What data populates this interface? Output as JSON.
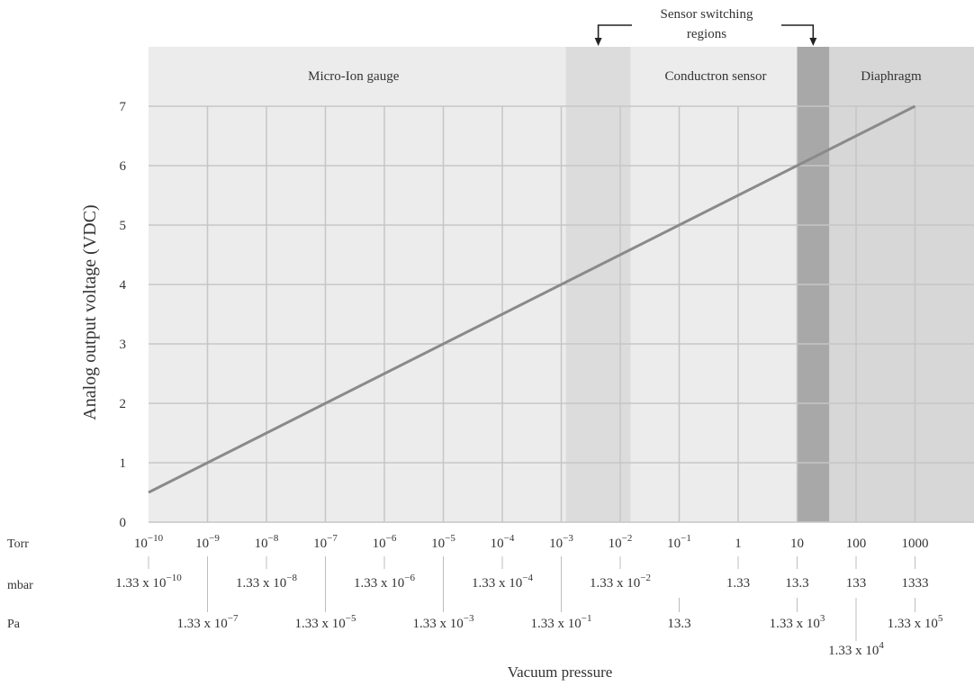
{
  "chart_data": {
    "type": "line",
    "title": "",
    "xlabel": "Vacuum pressure",
    "ylabel": "Analog output voltage (VDC)",
    "x_scale": "log",
    "x_unit": "Torr",
    "ylim": [
      0,
      7
    ],
    "yticks": [
      "0",
      "1",
      "2",
      "3",
      "4",
      "5",
      "6",
      "7"
    ],
    "grid": true,
    "series": [
      {
        "x": [
          1e-10,
          1000
        ],
        "y": [
          0.5,
          7
        ],
        "color": "#8a8a8a"
      }
    ],
    "regions": [
      {
        "label": "Micro-Ion gauge",
        "from": 1e-11,
        "to": 0.0012
      },
      {
        "label": "Conductron sensor",
        "from": 0.0012,
        "to": 10
      },
      {
        "label": "Diaphragm",
        "from": 10,
        "to": 10000
      }
    ],
    "switching_regions": [
      {
        "from": 0.0012,
        "to": 0.015
      },
      {
        "from": 10,
        "to": 35
      }
    ],
    "switching_annotation": [
      "Sensor switching",
      "regions"
    ],
    "scale_rows": [
      {
        "label": "Torr",
        "ticks": [
          {
            "value": 1e-10,
            "base": "10",
            "exp": "−10"
          },
          {
            "value": 1e-09,
            "base": "10",
            "exp": "−9"
          },
          {
            "value": 1e-08,
            "base": "10",
            "exp": "−8"
          },
          {
            "value": 1e-07,
            "base": "10",
            "exp": "−7"
          },
          {
            "value": 1e-06,
            "base": "10",
            "exp": "−6"
          },
          {
            "value": 1e-05,
            "base": "10",
            "exp": "−5"
          },
          {
            "value": 0.0001,
            "base": "10",
            "exp": "−4"
          },
          {
            "value": 0.001,
            "base": "10",
            "exp": "−3"
          },
          {
            "value": 0.01,
            "base": "10",
            "exp": "−2"
          },
          {
            "value": 0.1,
            "base": "10",
            "exp": "−1"
          },
          {
            "value": 1,
            "base": "1",
            "exp": ""
          },
          {
            "value": 10,
            "base": "10",
            "exp": ""
          },
          {
            "value": 100,
            "base": "100",
            "exp": ""
          },
          {
            "value": 1000,
            "base": "1000",
            "exp": ""
          }
        ]
      },
      {
        "label": "mbar",
        "ticks": [
          {
            "value": 1e-10,
            "base": "1.33 x 10",
            "exp": "−10"
          },
          {
            "value": 1e-08,
            "base": "1.33 x 10",
            "exp": "−8"
          },
          {
            "value": 1e-06,
            "base": "1.33 x 10",
            "exp": "−6"
          },
          {
            "value": 0.0001,
            "base": "1.33 x 10",
            "exp": "−4"
          },
          {
            "value": 0.01,
            "base": "1.33 x 10",
            "exp": "−2"
          },
          {
            "value": 1,
            "base": "1.33",
            "exp": ""
          },
          {
            "value": 10,
            "base": "13.3",
            "exp": ""
          },
          {
            "value": 100,
            "base": "133",
            "exp": ""
          },
          {
            "value": 1000,
            "base": "1333",
            "exp": ""
          }
        ]
      },
      {
        "label": "Pa",
        "ticks": [
          {
            "value": 1e-09,
            "base": "1.33 x 10",
            "exp": "−7"
          },
          {
            "value": 1e-07,
            "base": "1.33 x 10",
            "exp": "−5"
          },
          {
            "value": 1e-05,
            "base": "1.33 x 10",
            "exp": "−3"
          },
          {
            "value": 0.001,
            "base": "1.33 x 10",
            "exp": "−1"
          },
          {
            "value": 0.1,
            "base": "13.3",
            "exp": ""
          },
          {
            "value": 10,
            "base": "1.33 x 10",
            "exp": "3"
          },
          {
            "value": 100,
            "base": "1.33 x 10",
            "exp": "4"
          },
          {
            "value": 1000,
            "base": "1.33 x 10",
            "exp": "5"
          }
        ]
      }
    ],
    "colors": {
      "region_bg": "#ececec",
      "switch_light": "#dcdcdc",
      "switch_dark": "#a8a8a8",
      "diaphragm_bg": "#d7d7d7",
      "grid": "#c6c6c6",
      "line": "#8a8a8a"
    }
  }
}
